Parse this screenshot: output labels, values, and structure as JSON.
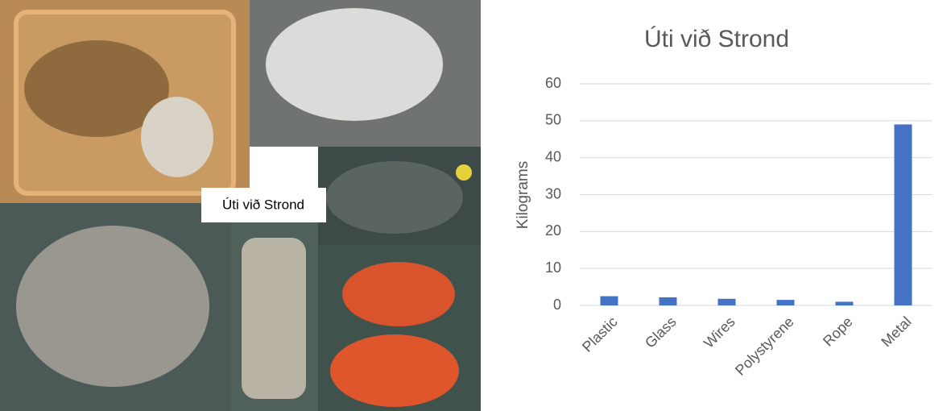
{
  "photo_label": "Úti við Strond",
  "chart_data": {
    "type": "bar",
    "title": "Úti við Strond",
    "y_label": "Kilograms",
    "categories": [
      "Plastic",
      "Glass",
      "Wires",
      "Polystyrene",
      "Rope",
      "Metal"
    ],
    "values": [
      2.5,
      2.2,
      1.8,
      1.5,
      1.0,
      49
    ],
    "color": "#4472c4",
    "ylim": [
      0,
      60
    ],
    "yticks": [
      0,
      10,
      20,
      30,
      40,
      50,
      60
    ],
    "grid": true
  }
}
